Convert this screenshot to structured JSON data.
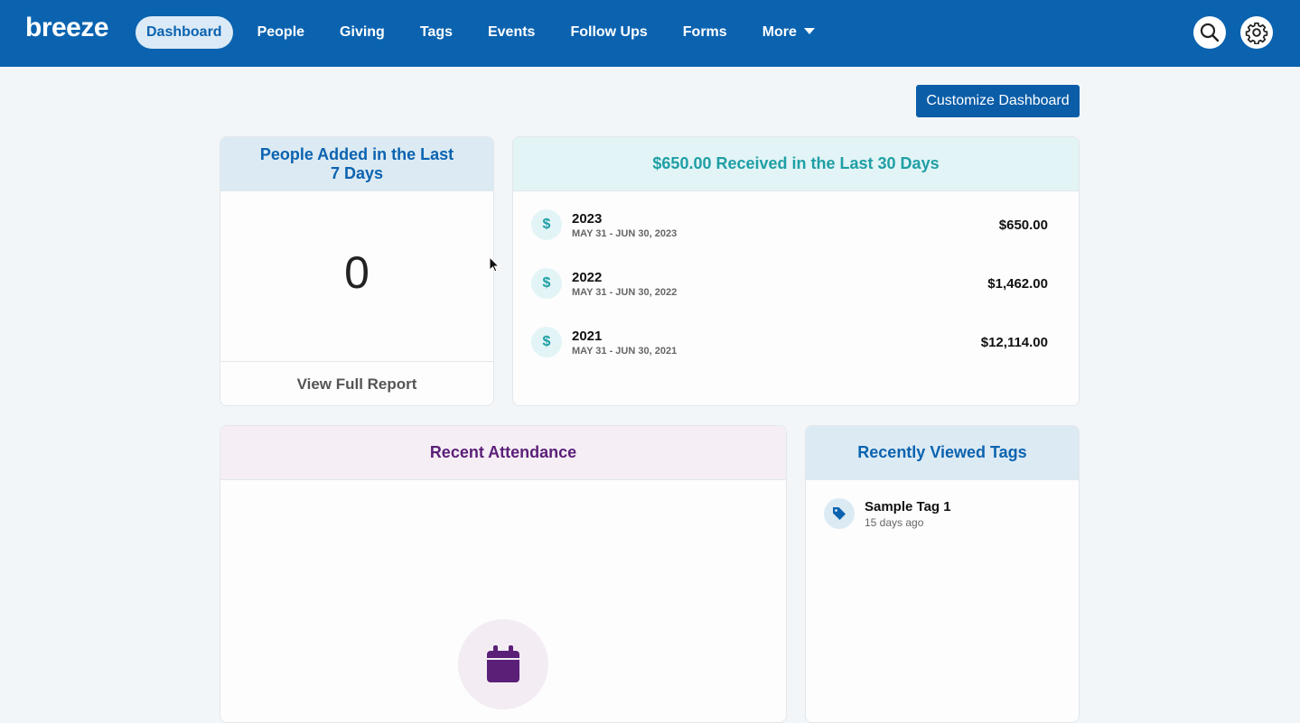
{
  "brand": {
    "logo_text": "breeze",
    "primary": "#0b63b0"
  },
  "nav": {
    "items": [
      {
        "label": "Dashboard",
        "active": true
      },
      {
        "label": "People"
      },
      {
        "label": "Giving"
      },
      {
        "label": "Tags"
      },
      {
        "label": "Events"
      },
      {
        "label": "Follow Ups"
      },
      {
        "label": "Forms"
      },
      {
        "label": "More"
      }
    ],
    "icons": [
      "search-icon",
      "gear-icon"
    ]
  },
  "toolbar": {
    "customize_label": "Customize Dashboard"
  },
  "people_card": {
    "title": "People Added in the Last 7 Days",
    "count": "0",
    "report_label": "View Full Report"
  },
  "giving_card": {
    "title": "$650.00 Received in the Last 30 Days",
    "rows": [
      {
        "icon": "$",
        "year": "2023",
        "range": "MAY 31 - JUN 30, 2023",
        "amount": "$650.00"
      },
      {
        "icon": "$",
        "year": "2022",
        "range": "MAY 31 - JUN 30, 2022",
        "amount": "$1,462.00"
      },
      {
        "icon": "$",
        "year": "2021",
        "range": "MAY 31 - JUN 30, 2021",
        "amount": "$12,114.00"
      }
    ]
  },
  "attendance_card": {
    "title": "Recent Attendance",
    "icon": "calendar-icon"
  },
  "tags_card": {
    "title": "Recently Viewed Tags",
    "items": [
      {
        "icon": "tag-icon",
        "name": "Sample Tag 1",
        "time": "15 days ago"
      }
    ]
  }
}
